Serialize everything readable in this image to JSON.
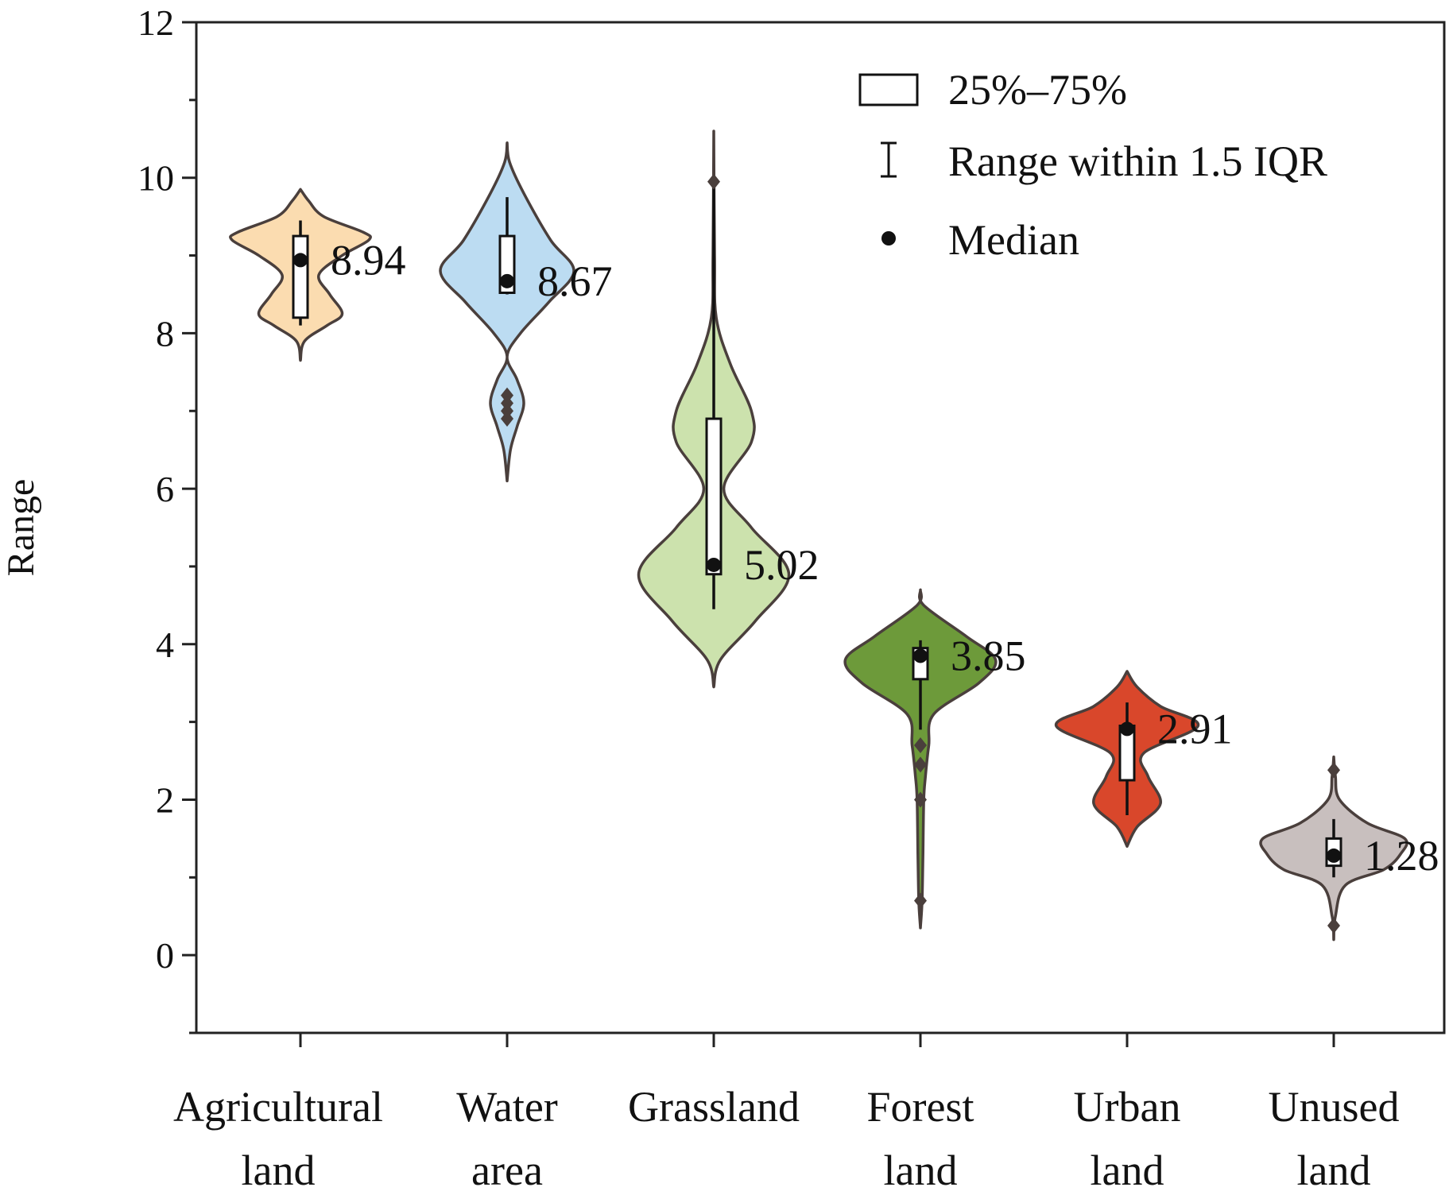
{
  "chart_data": {
    "type": "violin",
    "title": "",
    "xlabel": "",
    "ylabel": "Range",
    "ylim": [
      -1,
      12
    ],
    "yticks": [
      0,
      2,
      4,
      6,
      8,
      10,
      12
    ],
    "grid": false,
    "legend_position": "top-right",
    "legend": {
      "box": "25%–75%",
      "whisker": "Range within 1.5 IQR",
      "median": "Median"
    },
    "categories": [
      [
        "Agricultural",
        "land"
      ],
      [
        "Water",
        "area"
      ],
      [
        "Grassland"
      ],
      [
        "Forest",
        "land"
      ],
      [
        "Urban",
        "land"
      ],
      [
        "Unused",
        "land"
      ]
    ],
    "series": [
      {
        "color": "#fbdcb0",
        "median": 8.94,
        "median_label": "8.94",
        "q1": 8.2,
        "q3": 9.25,
        "whisker_low": 8.1,
        "whisker_high": 9.45,
        "outliers": [],
        "density": [
          [
            7.65,
            0.0
          ],
          [
            7.9,
            0.05
          ],
          [
            8.1,
            0.32
          ],
          [
            8.25,
            0.5
          ],
          [
            8.5,
            0.35
          ],
          [
            8.75,
            0.22
          ],
          [
            9.0,
            0.5
          ],
          [
            9.2,
            0.82
          ],
          [
            9.3,
            0.75
          ],
          [
            9.5,
            0.28
          ],
          [
            9.7,
            0.1
          ],
          [
            9.85,
            0.0
          ]
        ]
      },
      {
        "color": "#bcdcf2",
        "median": 8.67,
        "median_label": "8.67",
        "q1": 8.52,
        "q3": 9.25,
        "whisker_low": 8.5,
        "whisker_high": 9.75,
        "outliers": [
          7.2,
          7.1,
          7.0,
          6.9
        ],
        "density": [
          [
            6.1,
            0.0
          ],
          [
            6.5,
            0.04
          ],
          [
            6.8,
            0.12
          ],
          [
            7.1,
            0.2
          ],
          [
            7.4,
            0.12
          ],
          [
            7.7,
            0.0
          ],
          [
            8.0,
            0.16
          ],
          [
            8.4,
            0.5
          ],
          [
            8.8,
            0.8
          ],
          [
            9.2,
            0.52
          ],
          [
            9.8,
            0.2
          ],
          [
            10.2,
            0.03
          ],
          [
            10.45,
            0.0
          ]
        ]
      },
      {
        "color": "#cce2ad",
        "median": 5.02,
        "median_label": "5.02",
        "q1": 4.9,
        "q3": 6.9,
        "whisker_low": 4.45,
        "whisker_high": 10.0,
        "outliers": [
          9.95
        ],
        "density": [
          [
            3.45,
            0.0
          ],
          [
            3.8,
            0.08
          ],
          [
            4.3,
            0.5
          ],
          [
            4.9,
            0.9
          ],
          [
            5.5,
            0.45
          ],
          [
            6.0,
            0.12
          ],
          [
            6.6,
            0.45
          ],
          [
            7.0,
            0.45
          ],
          [
            7.6,
            0.2
          ],
          [
            8.2,
            0.03
          ],
          [
            9.0,
            0.01
          ],
          [
            10.6,
            0.0
          ]
        ]
      },
      {
        "color": "#6d9a3a",
        "median": 3.85,
        "median_label": "3.85",
        "q1": 3.55,
        "q3": 3.95,
        "whisker_low": 2.9,
        "whisker_high": 4.05,
        "outliers": [
          2.7,
          2.45,
          2.0,
          0.7
        ],
        "density": [
          [
            0.35,
            0.0
          ],
          [
            0.7,
            0.02
          ],
          [
            1.3,
            0.03
          ],
          [
            2.0,
            0.04
          ],
          [
            2.3,
            0.06
          ],
          [
            2.7,
            0.1
          ],
          [
            3.1,
            0.16
          ],
          [
            3.5,
            0.7
          ],
          [
            3.8,
            0.9
          ],
          [
            4.1,
            0.55
          ],
          [
            4.5,
            0.04
          ],
          [
            4.7,
            0.0
          ]
        ]
      },
      {
        "color": "#d9472b",
        "median": 2.91,
        "median_label": "2.91",
        "q1": 2.25,
        "q3": 2.95,
        "whisker_low": 1.8,
        "whisker_high": 3.25,
        "outliers": [],
        "density": [
          [
            1.4,
            0.0
          ],
          [
            1.65,
            0.12
          ],
          [
            1.95,
            0.4
          ],
          [
            2.3,
            0.25
          ],
          [
            2.6,
            0.2
          ],
          [
            2.95,
            0.85
          ],
          [
            3.2,
            0.4
          ],
          [
            3.45,
            0.12
          ],
          [
            3.65,
            0.0
          ]
        ]
      },
      {
        "color": "#c8bfbe",
        "median": 1.28,
        "median_label": "1.28",
        "q1": 1.15,
        "q3": 1.5,
        "whisker_low": 1.0,
        "whisker_high": 1.75,
        "outliers": [
          2.38,
          0.38
        ],
        "density": [
          [
            0.2,
            0.0
          ],
          [
            0.5,
            0.02
          ],
          [
            0.9,
            0.14
          ],
          [
            1.1,
            0.6
          ],
          [
            1.3,
            0.8
          ],
          [
            1.5,
            0.85
          ],
          [
            1.7,
            0.4
          ],
          [
            2.0,
            0.07
          ],
          [
            2.3,
            0.02
          ],
          [
            2.55,
            0.0
          ]
        ]
      }
    ]
  }
}
